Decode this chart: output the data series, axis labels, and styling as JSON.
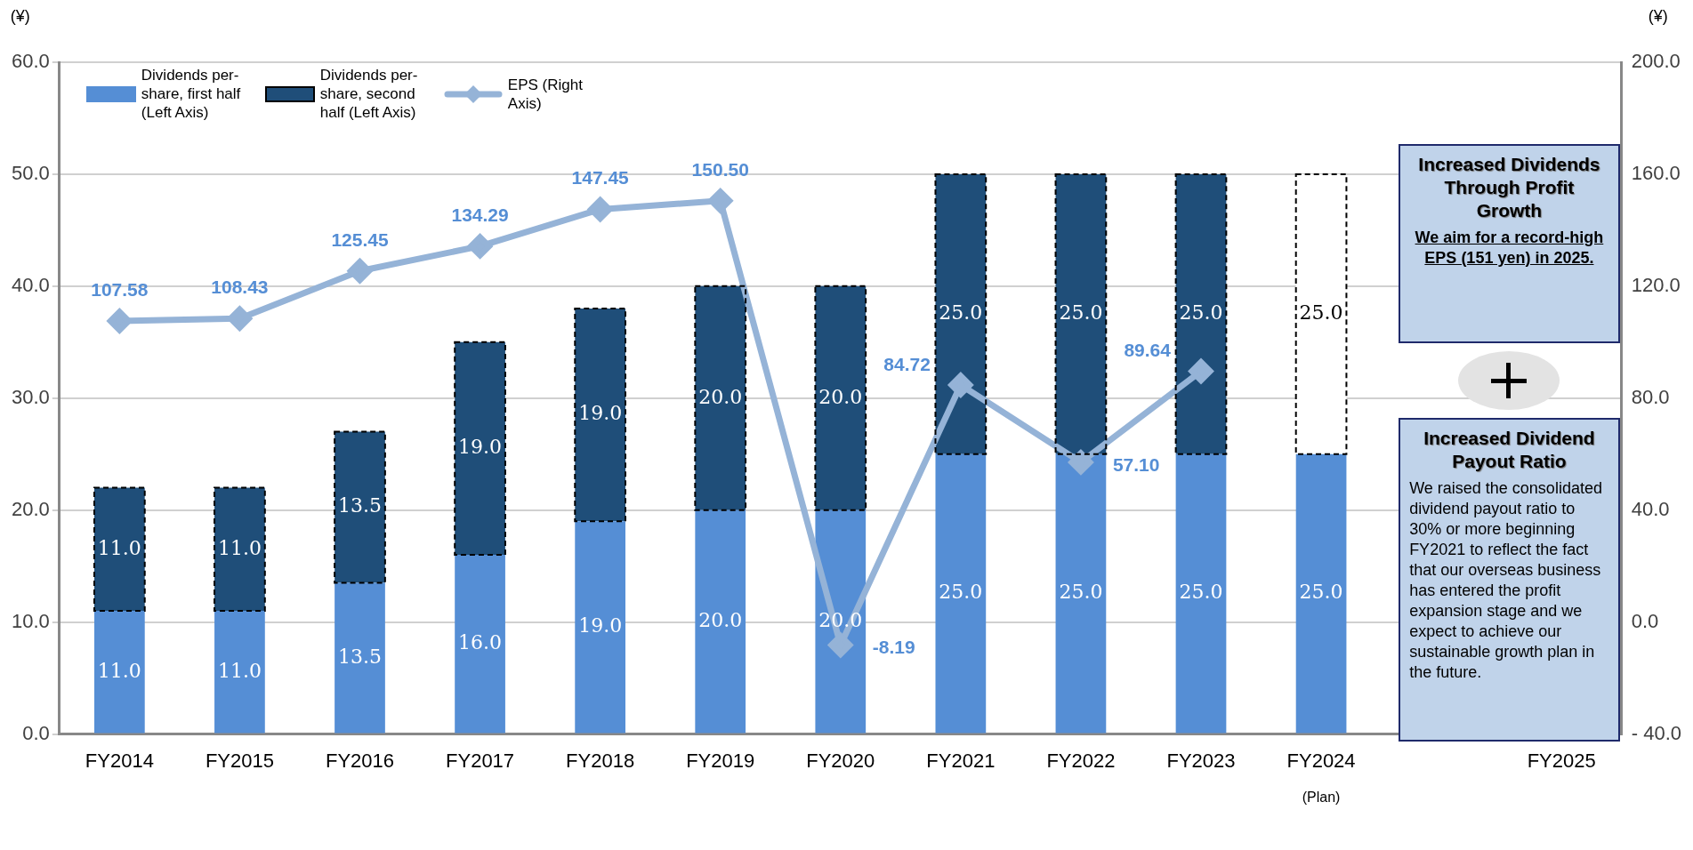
{
  "chart_data": {
    "type": "bar",
    "stacked": true,
    "categories": [
      "FY2014",
      "FY2015",
      "FY2016",
      "FY2017",
      "FY2018",
      "FY2019",
      "FY2020",
      "FY2021",
      "FY2022",
      "FY2023",
      "FY2024",
      null,
      "FY2025"
    ],
    "series": [
      {
        "name": "Dividends per-share, first half (Left Axis)",
        "color": "#558ed5",
        "values": [
          11.0,
          11.0,
          13.5,
          16.0,
          19.0,
          20.0,
          20.0,
          25.0,
          25.0,
          25.0,
          25.0,
          null,
          null
        ],
        "value_labels": [
          "11.0",
          "11.0",
          "13.5",
          "16.0",
          "19.0",
          "20.0",
          "20.0",
          "25.0",
          "25.0",
          "25.0",
          "25.0",
          null,
          null
        ]
      },
      {
        "name": "Dividends per-share, second half (Left Axis)",
        "color": "#1f4e79",
        "colors": [
          "#1f4e79",
          "#1f4e79",
          "#1f4e79",
          "#1f4e79",
          "#1f4e79",
          "#1f4e79",
          "#1f4e79",
          "#1f4e79",
          "#1f4e79",
          "#1f4e79",
          "#ffffff",
          "#1f4e79",
          "#1f4e79"
        ],
        "line_style": "dashed",
        "values": [
          11.0,
          11.0,
          13.5,
          19.0,
          19.0,
          20.0,
          20.0,
          25.0,
          25.0,
          25.0,
          25.0,
          null,
          null
        ],
        "value_labels": [
          "11.0",
          "11.0",
          "13.5",
          "19.0",
          "19.0",
          "20.0",
          "20.0",
          "25.0",
          "25.0",
          "25.0",
          "25.0",
          null,
          null
        ]
      },
      {
        "name": "EPS (Right Axis)",
        "type": "line",
        "axis": "y2",
        "color": "#95b3d7",
        "marker": "diamond",
        "values": [
          107.58,
          108.43,
          125.45,
          134.29,
          147.45,
          150.5,
          -8.19,
          84.72,
          57.1,
          89.64,
          null,
          null,
          null
        ],
        "value_labels": [
          "107.58",
          "108.43",
          "125.45",
          "134.29",
          "147.45",
          "150.50",
          "-8.19",
          "84.72",
          "57.10",
          "89.64",
          null,
          null,
          null
        ]
      }
    ],
    "ylabel": "(¥)",
    "y2label": "(¥)",
    "ylim": [
      0,
      60
    ],
    "yticks": [
      {
        "value": 0,
        "label": "0.0"
      },
      {
        "value": 10,
        "label": "10.0"
      },
      {
        "value": 20,
        "label": "20.0"
      },
      {
        "value": 30,
        "label": "30.0"
      },
      {
        "value": 40,
        "label": "40.0"
      },
      {
        "value": 50,
        "label": "50.0"
      },
      {
        "value": 60,
        "label": "60.0"
      }
    ],
    "y2lim": [
      -40,
      200
    ],
    "y2ticks": [
      {
        "value": -40,
        "label": "- 40.0"
      },
      {
        "value": 0,
        "label": "0.0"
      },
      {
        "value": 40,
        "label": "40.0"
      },
      {
        "value": 80,
        "label": "80.0"
      },
      {
        "value": 120,
        "label": "120.0"
      },
      {
        "value": 160,
        "label": "160.0"
      },
      {
        "value": 200,
        "label": "200.0"
      }
    ],
    "grid": "y",
    "legend": "top left",
    "annotations": [
      "(Plan)",
      "Increased Dividends Through Profit Growth",
      "We aim for a record-high EPS (151 yen) in 2025.",
      "Increased Dividend Payout Ratio",
      "We raised the consolidated dividend payout ratio to 30% or more beginning FY2021 to reflect the fact that our overseas business has entered the profit expansion stage and we expect to achieve our sustainable growth plan in the future."
    ]
  }
}
